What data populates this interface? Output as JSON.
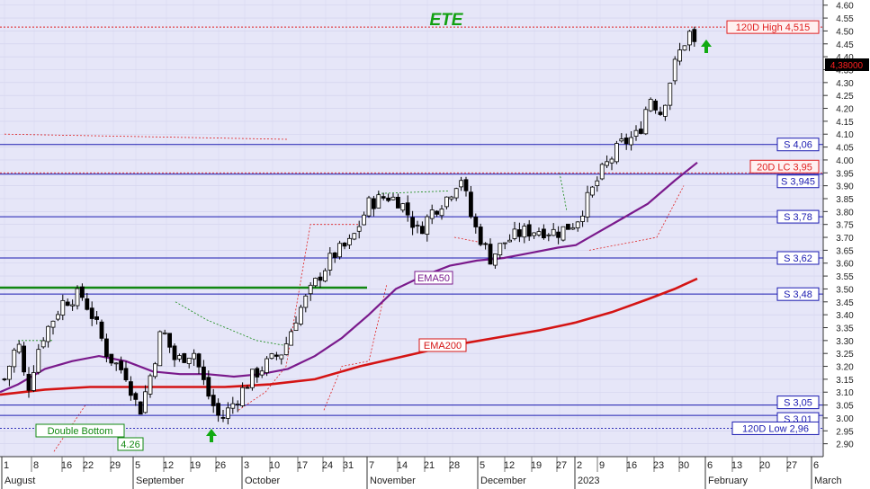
{
  "chart_data": {
    "type": "candlestick",
    "title": "ETE",
    "y_axis": {
      "side": "right",
      "ylim": [
        2.85,
        4.62
      ],
      "ticks": [
        "2.90",
        "2.95",
        "3.00",
        "3.05",
        "3.10",
        "3.15",
        "3.20",
        "3.25",
        "3.30",
        "3.35",
        "3.40",
        "3.45",
        "3.50",
        "3.55",
        "3.60",
        "3.65",
        "3.70",
        "3.75",
        "3.80",
        "3.85",
        "3.90",
        "3.95",
        "4.00",
        "4.05",
        "4.10",
        "4.15",
        "4.20",
        "4.25",
        "4.30",
        "4.35",
        "4.40",
        "4.45",
        "4.50",
        "4.55",
        "4.60"
      ]
    },
    "x_axis": {
      "day_ticks": [
        "1",
        "8",
        "16",
        "22",
        "29",
        "5",
        "12",
        "19",
        "26",
        "3",
        "10",
        "17",
        "24",
        "31",
        "7",
        "14",
        "21",
        "28",
        "5",
        "12",
        "19",
        "27",
        "2",
        "9",
        "16",
        "23",
        "30",
        "6",
        "13",
        "20",
        "27",
        "6"
      ],
      "months": [
        {
          "label": "August",
          "at_tick": 0
        },
        {
          "label": "September",
          "at_tick": 5
        },
        {
          "label": "October",
          "at_tick": 9
        },
        {
          "label": "November",
          "at_tick": 14
        },
        {
          "label": "December",
          "at_tick": 18
        },
        {
          "label": "2023",
          "at_tick": 22
        },
        {
          "label": "February",
          "at_tick": 27
        },
        {
          "label": "March",
          "at_tick": 31
        }
      ]
    },
    "last_price": {
      "label": "4,38000",
      "value": 4.38
    },
    "horizontal_levels": [
      {
        "label": "120D High 4,515",
        "value": 4.515,
        "color": "#e02020",
        "style": "dotted"
      },
      {
        "label": "S 4,06",
        "value": 4.06,
        "color": "#1a1ab0",
        "style": "solid"
      },
      {
        "label": "20D LC 3,95",
        "value": 3.95,
        "color": "#e02020",
        "style": "dotted"
      },
      {
        "label": "S 3,945",
        "value": 3.945,
        "color": "#1a1ab0",
        "style": "solid"
      },
      {
        "label": "S 3,78",
        "value": 3.78,
        "color": "#1a1ab0",
        "style": "solid"
      },
      {
        "label": "S 3,62",
        "value": 3.62,
        "color": "#1a1ab0",
        "style": "solid"
      },
      {
        "label": "S 3,48",
        "value": 3.48,
        "color": "#1a1ab0",
        "style": "solid"
      },
      {
        "label": "S 3,05",
        "value": 3.05,
        "color": "#1a1ab0",
        "style": "solid"
      },
      {
        "label": "S 3,01",
        "value": 3.01,
        "color": "#1a1ab0",
        "style": "solid"
      },
      {
        "label": "120D Low 2,96",
        "value": 2.96,
        "color": "#1a1ab0",
        "style": "dotted"
      }
    ],
    "series": [
      {
        "name": "EMA50",
        "color": "#7a1a8c",
        "points": [
          [
            0,
            3.1
          ],
          [
            20,
            3.13
          ],
          [
            50,
            3.19
          ],
          [
            80,
            3.22
          ],
          [
            110,
            3.24
          ],
          [
            140,
            3.22
          ],
          [
            170,
            3.18
          ],
          [
            200,
            3.17
          ],
          [
            230,
            3.17
          ],
          [
            260,
            3.16
          ],
          [
            290,
            3.17
          ],
          [
            320,
            3.19
          ],
          [
            350,
            3.24
          ],
          [
            380,
            3.31
          ],
          [
            410,
            3.4
          ],
          [
            440,
            3.5
          ],
          [
            470,
            3.55
          ],
          [
            500,
            3.59
          ],
          [
            530,
            3.61
          ],
          [
            560,
            3.62
          ],
          [
            590,
            3.64
          ],
          [
            620,
            3.66
          ],
          [
            640,
            3.67
          ],
          [
            660,
            3.71
          ],
          [
            690,
            3.77
          ],
          [
            720,
            3.83
          ],
          [
            750,
            3.92
          ],
          [
            775,
            3.99
          ]
        ]
      },
      {
        "name": "EMA200",
        "color": "#d41414",
        "points": [
          [
            0,
            3.09
          ],
          [
            50,
            3.11
          ],
          [
            100,
            3.12
          ],
          [
            150,
            3.12
          ],
          [
            200,
            3.12
          ],
          [
            250,
            3.12
          ],
          [
            300,
            3.13
          ],
          [
            350,
            3.15
          ],
          [
            400,
            3.2
          ],
          [
            450,
            3.24
          ],
          [
            500,
            3.28
          ],
          [
            550,
            3.31
          ],
          [
            600,
            3.34
          ],
          [
            640,
            3.37
          ],
          [
            680,
            3.41
          ],
          [
            720,
            3.46
          ],
          [
            750,
            3.5
          ],
          [
            775,
            3.54
          ]
        ]
      }
    ],
    "annotations": [
      {
        "label": "Double Bottom",
        "color": "#118811"
      },
      {
        "label": "4.26",
        "color": "#118811"
      }
    ]
  }
}
